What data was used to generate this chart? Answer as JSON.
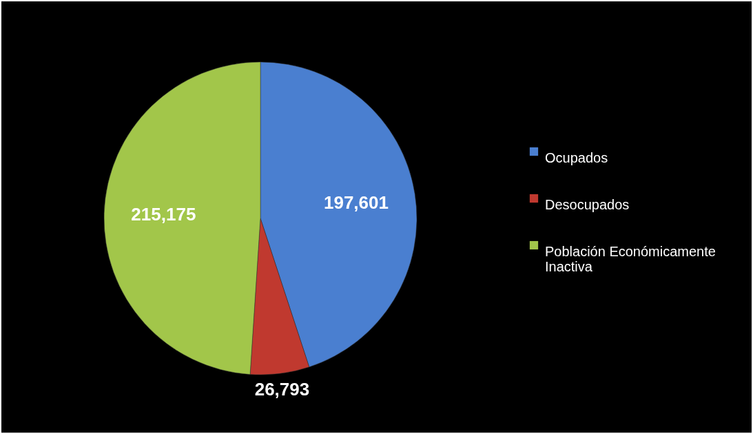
{
  "chart_data": {
    "type": "pie",
    "categories": [
      "Ocupados",
      "Desocupados",
      "Población Económicamente Inactiva"
    ],
    "values": [
      197601,
      26793,
      215175
    ],
    "value_labels": [
      "197,601",
      "26,793",
      "215,175"
    ],
    "colors": [
      "#4a7fd0",
      "#c0392f",
      "#a2c64a"
    ],
    "legend": "right"
  }
}
